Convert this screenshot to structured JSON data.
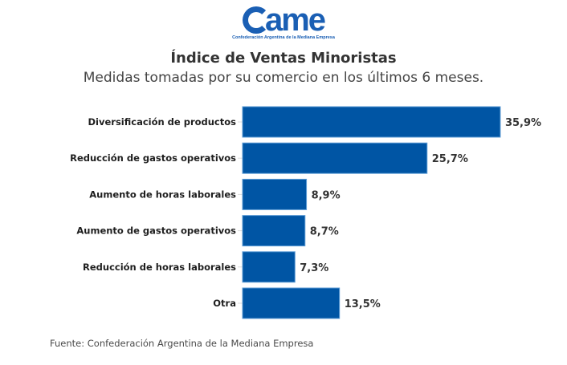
{
  "logo": {
    "mark": "ame",
    "subtitle": "Confederación Argentina de la Mediana Empresa"
  },
  "colors": {
    "bar": "#0055a4",
    "bar_edge": "#5b9bd5",
    "logo": "#1a5fb4"
  },
  "chart_data": {
    "type": "bar",
    "orientation": "horizontal",
    "title": "Índice de Ventas Minoristas",
    "subtitle": "Medidas tomadas por su comercio en los últimos 6 meses.",
    "xlabel": "",
    "ylabel": "",
    "grid": false,
    "legend": "none",
    "unit": "%",
    "xlim": [
      0,
      40
    ],
    "categories": [
      "Diversificación de productos",
      "Reducción de gastos operativos",
      "Aumento de horas laborales",
      "Aumento de gastos operativos",
      "Reducción de horas laborales",
      "Otra"
    ],
    "values": [
      35.9,
      25.7,
      8.9,
      8.7,
      7.3,
      13.5
    ],
    "data_labels": [
      "35,9%",
      "25,7%",
      "8,9%",
      "8,7%",
      "7,3%",
      "13,5%"
    ]
  },
  "footer": {
    "source": "Fuente: Confederación Argentina de la Mediana Empresa"
  }
}
